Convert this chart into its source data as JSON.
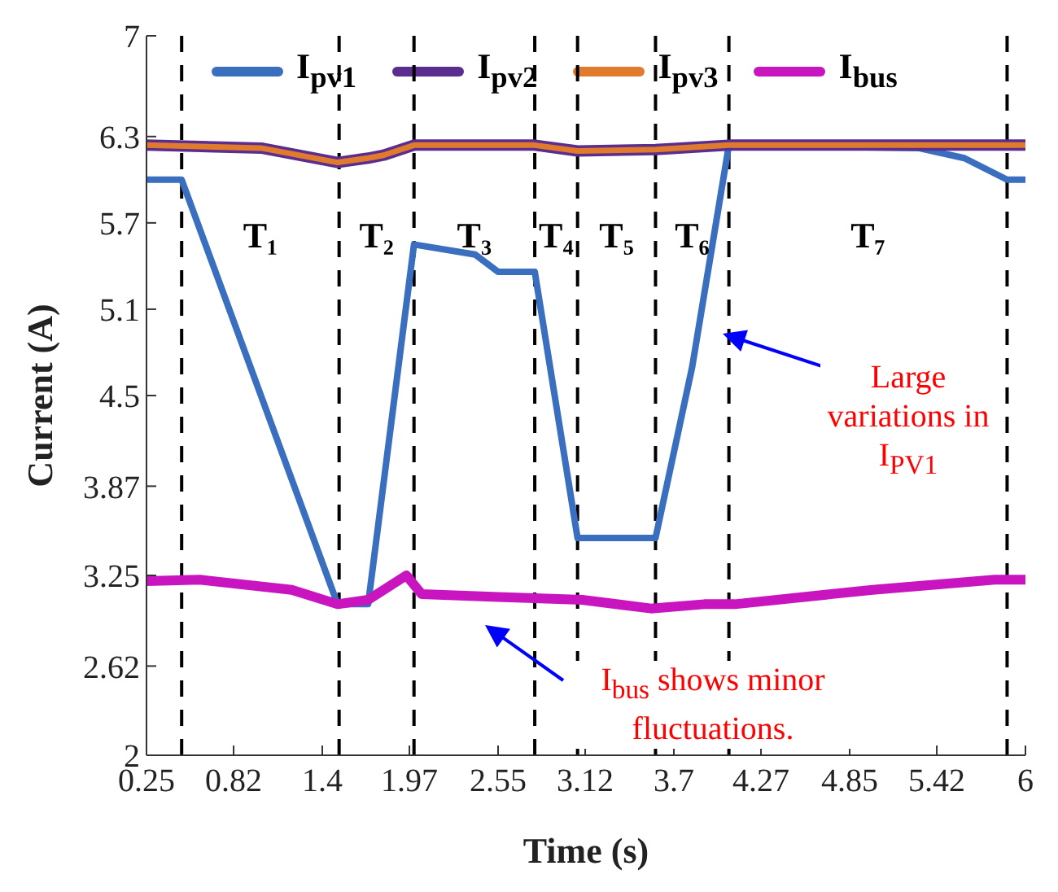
{
  "chart_data": {
    "type": "line",
    "xlabel": "Time (s)",
    "ylabel": "Current (A)",
    "xlim": [
      0.25,
      6
    ],
    "xticks": [
      0.25,
      0.82,
      1.4,
      1.97,
      2.55,
      3.12,
      3.7,
      4.27,
      4.85,
      5.42,
      6
    ],
    "ylim": [
      2,
      7
    ],
    "yticks": [
      2,
      2.62,
      3.25,
      3.87,
      4.5,
      5.1,
      5.7,
      6.3,
      7
    ],
    "grid": false,
    "legend": "top",
    "marker": "none",
    "line_style": "solid",
    "series": [
      {
        "name": "I$_{pv1}$",
        "color": "#3a6ebf",
        "x": [
          0.25,
          0.48,
          1.5,
          1.7,
          2.0,
          2.4,
          2.55,
          2.79,
          3.07,
          3.58,
          3.82,
          4.06,
          5.3,
          5.6,
          5.88,
          6
        ],
        "values": [
          6.0,
          6.0,
          3.05,
          3.05,
          5.55,
          5.48,
          5.36,
          5.36,
          3.51,
          3.51,
          4.7,
          6.24,
          6.22,
          6.15,
          6.0,
          6.0
        ]
      },
      {
        "name": "I$_{pv2}$",
        "color": "#5b2d8e",
        "x": [
          0.25,
          1.0,
          1.5,
          1.7,
          1.8,
          2.0,
          2.79,
          3.07,
          3.58,
          4.06,
          6
        ],
        "values": [
          6.24,
          6.22,
          6.12,
          6.15,
          6.17,
          6.24,
          6.24,
          6.2,
          6.21,
          6.24,
          6.24
        ]
      },
      {
        "name": "I$_{pv3}$",
        "color": "#e07b2e",
        "x": [
          0.25,
          1.0,
          1.5,
          1.7,
          1.8,
          2.0,
          2.79,
          3.07,
          3.58,
          4.06,
          6
        ],
        "values": [
          6.24,
          6.22,
          6.12,
          6.15,
          6.17,
          6.24,
          6.24,
          6.2,
          6.21,
          6.24,
          6.24
        ]
      },
      {
        "name": "I$_{bus}$",
        "color": "#c815c0",
        "x": [
          0.25,
          0.6,
          1.2,
          1.5,
          1.7,
          1.95,
          2.05,
          2.55,
          3.1,
          3.55,
          3.9,
          4.1,
          5.0,
          5.8,
          6
        ],
        "values": [
          3.21,
          3.22,
          3.15,
          3.05,
          3.08,
          3.25,
          3.12,
          3.1,
          3.08,
          3.02,
          3.05,
          3.05,
          3.15,
          3.22,
          3.22
        ]
      }
    ],
    "ref_lines": [
      {
        "axis": "x",
        "value": 0.48,
        "color": "#000000",
        "line_style": "dashed"
      },
      {
        "axis": "x",
        "value": 1.51,
        "color": "#000000",
        "line_style": "dashed"
      },
      {
        "axis": "x",
        "value": 2.0,
        "color": "#000000",
        "line_style": "dashed"
      },
      {
        "axis": "x",
        "value": 2.79,
        "color": "#000000",
        "line_style": "dashed"
      },
      {
        "axis": "x",
        "value": 3.07,
        "color": "#000000",
        "line_style": "dashed"
      },
      {
        "axis": "x",
        "value": 3.58,
        "color": "#000000",
        "line_style": "dashed"
      },
      {
        "axis": "x",
        "value": 4.06,
        "color": "#000000",
        "line_style": "dashed"
      },
      {
        "axis": "x",
        "value": 5.88,
        "color": "#000000",
        "line_style": "dashed"
      }
    ],
    "annotations": [
      "T₁",
      "T₂",
      "T₃",
      "T₄",
      "T₅",
      "T₆",
      "T₇",
      "Large variations in I$_{PV1}$",
      "I$_{bus}$ shows minor fluctuations."
    ]
  }
}
